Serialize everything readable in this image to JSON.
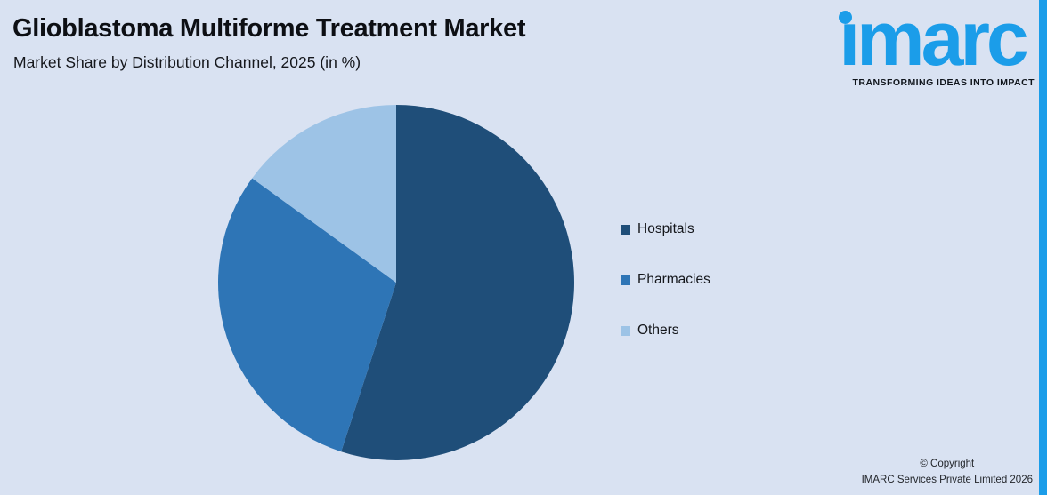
{
  "header": {
    "title": "Glioblastoma Multiforme Treatment Market",
    "subtitle": "Market Share by Distribution Channel, 2025 (in %)"
  },
  "logo": {
    "wordmark": "imarc",
    "tagline": "TRANSFORMING IDEAS INTO IMPACT",
    "brand_color": "#1b9de9"
  },
  "chart_data": {
    "type": "pie",
    "title": "Market Share by Distribution Channel, 2025 (in %)",
    "categories": [
      "Hospitals",
      "Pharmacies",
      "Others"
    ],
    "values": [
      55,
      30,
      15
    ],
    "colors": [
      "#1f4e79",
      "#2e75b6",
      "#9dc3e6"
    ],
    "start_angle_deg": 0,
    "direction": "clockwise",
    "legend_position": "right",
    "labels_shown": false
  },
  "footer": {
    "copyright_line1": "© Copyright",
    "copyright_line2": "IMARC Services Private Limited 2026"
  },
  "colors": {
    "background": "#d9e2f2",
    "accent_stripe": "#1b9de9"
  }
}
